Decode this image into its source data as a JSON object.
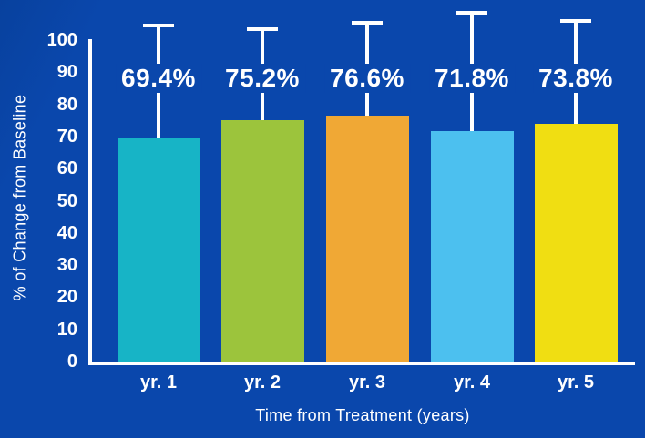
{
  "chart_data": {
    "type": "bar",
    "title": "",
    "categories": [
      "yr. 1",
      "yr. 2",
      "yr. 3",
      "yr. 4",
      "yr. 5"
    ],
    "values": [
      69.4,
      75.2,
      76.6,
      71.8,
      73.8
    ],
    "value_labels": [
      "69.4%",
      "75.2%",
      "76.6%",
      "71.8%",
      "73.8%"
    ],
    "error_bar_tops": [
      105,
      104,
      106,
      109,
      106.5
    ],
    "bar_colors": [
      "#17b4c6",
      "#9cc43c",
      "#f0a835",
      "#4cc0ef",
      "#f0de12"
    ],
    "xlabel": "Time from Treatment (years)",
    "ylabel": "% of Change from Baseline",
    "yticks": [
      0,
      10,
      20,
      30,
      40,
      50,
      60,
      70,
      80,
      90,
      100
    ],
    "ylim": [
      0,
      100
    ],
    "grid": false,
    "legend": false,
    "background_color": "#0a47ac",
    "background_corner_color": "#08419e",
    "axis_color": "#ffffff",
    "text_color": "#ffffff"
  }
}
